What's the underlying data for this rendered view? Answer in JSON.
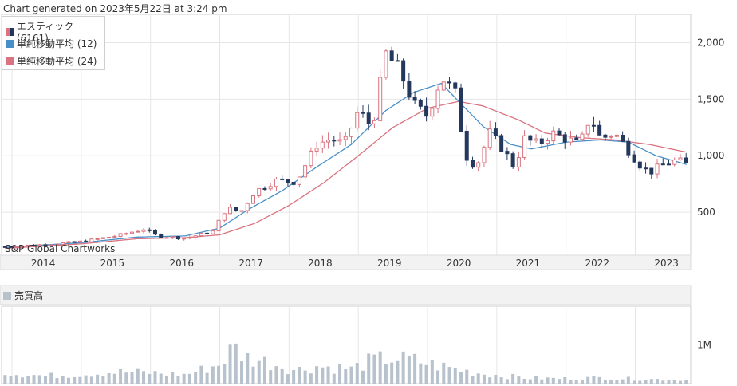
{
  "header": {
    "generated": "Chart generated on 2023年5月22日 at 3:24 pm"
  },
  "legend": [
    {
      "label": "エスティック(6161)",
      "swatch": "candle"
    },
    {
      "label": "単純移動平均 (12)",
      "color": "#4a90c8"
    },
    {
      "label": "単純移動平均 (24)",
      "color": "#d9737f"
    }
  ],
  "watermark": "S&P Global Chartworks",
  "volume_panel": {
    "label": "売買高",
    "color": "#b8c2cc"
  },
  "colors": {
    "up": "#d9737f",
    "down": "#24385e",
    "sma12": "#4a90c8",
    "sma24": "#d9737f",
    "grid": "#e6e6e6",
    "volume": "#b8c2cc"
  },
  "chart_data": [
    {
      "type": "candlestick",
      "ylim": [
        120,
        2250
      ],
      "yticks": [
        500,
        1000,
        1500,
        2000
      ],
      "ytick_labels": [
        "500",
        "1,000",
        "1,500",
        "2,000"
      ],
      "xlim": [
        2013.35,
        2023.3
      ],
      "x_year_labels": [
        "2014",
        "2015",
        "2016",
        "2017",
        "2018",
        "2019",
        "2020",
        "2021",
        "2022",
        "2023"
      ],
      "x_year_positions": [
        2013.95,
        2014.95,
        2015.95,
        2016.95,
        2017.95,
        2018.95,
        2019.95,
        2020.95,
        2021.95,
        2022.95
      ],
      "grid": true,
      "price_anchors": [
        [
          2013.4,
          195
        ],
        [
          2014.0,
          215
        ],
        [
          2014.5,
          240
        ],
        [
          2015.0,
          290
        ],
        [
          2015.4,
          350
        ],
        [
          2015.6,
          290
        ],
        [
          2016.0,
          270
        ],
        [
          2016.4,
          330
        ],
        [
          2016.6,
          540
        ],
        [
          2016.8,
          500
        ],
        [
          2017.0,
          680
        ],
        [
          2017.3,
          780
        ],
        [
          2017.6,
          770
        ],
        [
          2017.9,
          1100
        ],
        [
          2018.1,
          1150
        ],
        [
          2018.3,
          1100
        ],
        [
          2018.5,
          1400
        ],
        [
          2018.7,
          1250
        ],
        [
          2018.9,
          1900
        ],
        [
          2019.1,
          1750
        ],
        [
          2019.3,
          1450
        ],
        [
          2019.5,
          1350
        ],
        [
          2019.7,
          1700
        ],
        [
          2019.9,
          1550
        ],
        [
          2020.05,
          1000
        ],
        [
          2020.2,
          900
        ],
        [
          2020.4,
          1200
        ],
        [
          2020.6,
          1050
        ],
        [
          2020.75,
          900
        ],
        [
          2020.9,
          1150
        ],
        [
          2021.1,
          1100
        ],
        [
          2021.3,
          1200
        ],
        [
          2021.5,
          1150
        ],
        [
          2021.7,
          1100
        ],
        [
          2021.85,
          1350
        ],
        [
          2022.0,
          1150
        ],
        [
          2022.2,
          1200
        ],
        [
          2022.4,
          1050
        ],
        [
          2022.55,
          930
        ],
        [
          2022.7,
          850
        ],
        [
          2022.9,
          920
        ],
        [
          2023.1,
          960
        ],
        [
          2023.25,
          920
        ]
      ],
      "sma12_anchors": [
        [
          2013.4,
          190
        ],
        [
          2014.5,
          230
        ],
        [
          2015.3,
          280
        ],
        [
          2016.0,
          290
        ],
        [
          2016.5,
          360
        ],
        [
          2016.9,
          520
        ],
        [
          2017.4,
          690
        ],
        [
          2017.9,
          900
        ],
        [
          2018.4,
          1100
        ],
        [
          2018.9,
          1400
        ],
        [
          2019.3,
          1560
        ],
        [
          2019.7,
          1640
        ],
        [
          2019.95,
          1480
        ],
        [
          2020.3,
          1260
        ],
        [
          2020.7,
          1100
        ],
        [
          2021.0,
          1060
        ],
        [
          2021.5,
          1120
        ],
        [
          2022.0,
          1140
        ],
        [
          2022.4,
          1120
        ],
        [
          2022.8,
          1000
        ],
        [
          2023.25,
          920
        ]
      ],
      "sma24_anchors": [
        [
          2013.4,
          180
        ],
        [
          2014.5,
          220
        ],
        [
          2015.3,
          265
        ],
        [
          2016.0,
          275
        ],
        [
          2016.5,
          300
        ],
        [
          2017.0,
          400
        ],
        [
          2017.5,
          560
        ],
        [
          2018.0,
          760
        ],
        [
          2018.5,
          1000
        ],
        [
          2019.0,
          1250
        ],
        [
          2019.5,
          1420
        ],
        [
          2019.95,
          1480
        ],
        [
          2020.3,
          1440
        ],
        [
          2020.8,
          1320
        ],
        [
          2021.2,
          1200
        ],
        [
          2021.7,
          1160
        ],
        [
          2022.2,
          1140
        ],
        [
          2022.7,
          1100
        ],
        [
          2023.25,
          1030
        ]
      ]
    },
    {
      "type": "bar",
      "ylim": [
        0,
        2000000
      ],
      "yticks": [
        1000000
      ],
      "ytick_labels": [
        "1M"
      ],
      "xlim": [
        2013.35,
        2023.3
      ],
      "volume_anchors": [
        [
          2013.4,
          280000
        ],
        [
          2014.0,
          200000
        ],
        [
          2014.5,
          240000
        ],
        [
          2015.0,
          300000
        ],
        [
          2015.5,
          280000
        ],
        [
          2016.0,
          230000
        ],
        [
          2016.5,
          500000
        ],
        [
          2016.7,
          950000
        ],
        [
          2016.85,
          700000
        ],
        [
          2017.2,
          550000
        ],
        [
          2017.6,
          350000
        ],
        [
          2017.9,
          450000
        ],
        [
          2018.4,
          380000
        ],
        [
          2018.7,
          600000
        ],
        [
          2019.0,
          650000
        ],
        [
          2019.3,
          600000
        ],
        [
          2019.6,
          480000
        ],
        [
          2019.9,
          380000
        ],
        [
          2020.2,
          280000
        ],
        [
          2020.6,
          200000
        ],
        [
          2021.0,
          140000
        ],
        [
          2021.5,
          130000
        ],
        [
          2022.0,
          150000
        ],
        [
          2022.5,
          120000
        ],
        [
          2023.25,
          100000
        ]
      ]
    }
  ]
}
